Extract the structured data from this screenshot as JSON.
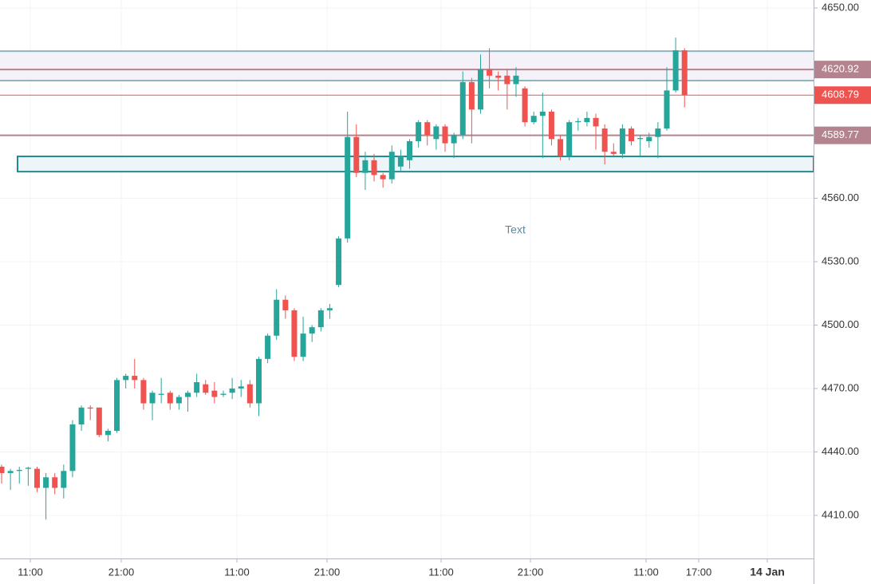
{
  "chart_data": {
    "type": "candlestick",
    "up_color": "#26a69a",
    "down_color": "#ef5350",
    "open": [
      4433,
      4430,
      4431,
      4432,
      4432,
      4423,
      4428,
      4423,
      4431,
      4453,
      4461,
      4461,
      4448,
      4450,
      4474,
      4476,
      4474,
      4463,
      4467,
      4468,
      4463,
      4466,
      4468,
      4472,
      4469,
      4467,
      4468,
      4470,
      4472,
      4463,
      4484,
      4495,
      4512,
      4507,
      4485,
      4496,
      4499,
      4507,
      4519,
      4541,
      4589,
      4572,
      4578,
      4571,
      4569,
      4575,
      4578,
      4587,
      4596,
      4588,
      4594,
      4586,
      4590,
      4615,
      4602,
      4621,
      4618,
      4618,
      4614,
      4612,
      4596,
      4599,
      4601,
      4588,
      4580,
      4596,
      4596,
      4598,
      4593,
      4582,
      4581,
      4593,
      4588,
      4587,
      4589,
      4593,
      4611,
      4630
    ],
    "high": [
      4434,
      4432,
      4433,
      4433,
      4433,
      4430,
      4430,
      4434,
      4455,
      4462,
      4462,
      4461,
      4451,
      4475,
      4477,
      4484,
      4475,
      4469,
      4475,
      4469,
      4467,
      4469,
      4477,
      4474,
      4473,
      4469,
      4475,
      4474,
      4474,
      4485,
      4496,
      4517,
      4514,
      4508,
      4504,
      4500,
      4508,
      4510,
      4542,
      4601,
      4595,
      4582,
      4581,
      4572,
      4585,
      4583,
      4588,
      4597,
      4597,
      4595,
      4595,
      4591,
      4620,
      4617,
      4628,
      4631,
      4620,
      4621,
      4622,
      4613,
      4601,
      4610,
      4602,
      4590,
      4597,
      4598,
      4601,
      4600,
      4595,
      4586,
      4595,
      4594,
      4590,
      4591,
      4596,
      4622,
      4636,
      4631
    ],
    "low": [
      4425,
      4422,
      4425,
      4424,
      4421,
      4408,
      4420,
      4418,
      4428,
      4450,
      4455,
      4447,
      4445,
      4449,
      4470,
      4470,
      4460,
      4455,
      4463,
      4460,
      4460,
      4459,
      4466,
      4467,
      4463,
      4466,
      4465,
      4466,
      4461,
      4457,
      4482,
      4493,
      4503,
      4483,
      4483,
      4492,
      4497,
      4503,
      4518,
      4539,
      4570,
      4564,
      4568,
      4565,
      4567,
      4573,
      4574,
      4584,
      4585,
      4583,
      4582,
      4579,
      4588,
      4586,
      4600,
      4612,
      4611,
      4602,
      4608,
      4594,
      4595,
      4579,
      4585,
      4578,
      4578,
      4592,
      4594,
      4583,
      4576,
      4580,
      4579,
      4585,
      4580,
      4584,
      4579,
      4592,
      4610,
      4603
    ],
    "close": [
      4430,
      4431,
      4431.5,
      4432.5,
      4423,
      4428,
      4423,
      4431,
      4453,
      4461,
      4460.5,
      4448,
      4450,
      4474,
      4476,
      4474,
      4463,
      4468,
      4467.5,
      4463,
      4466,
      4468,
      4473,
      4468,
      4466,
      4467.5,
      4470,
      4471,
      4463,
      4484,
      4495,
      4512,
      4507,
      4485,
      4496,
      4499,
      4507,
      4508,
      4541,
      4589,
      4572,
      4578,
      4571,
      4569,
      4582,
      4580,
      4587,
      4596,
      4590,
      4594,
      4586,
      4590,
      4615,
      4602,
      4621,
      4618,
      4617,
      4614,
      4618,
      4596,
      4599,
      4601,
      4588,
      4580,
      4596,
      4596.5,
      4598,
      4594,
      4582,
      4581,
      4593,
      4587,
      4588.5,
      4589,
      4593,
      4611,
      4630,
      4608.79
    ],
    "x_axis_labels": [
      "11:00",
      "21:00",
      "11:00",
      "21:00",
      "11:00",
      "21:00",
      "11:00",
      "17:00",
      "14 Jan"
    ],
    "ylim": [
      4389.6,
      4653.8
    ],
    "yticks": [
      {
        "value": 4410,
        "label": "4410.00"
      },
      {
        "value": 4440,
        "label": "4440.00"
      },
      {
        "value": 4470,
        "label": "4470.00"
      },
      {
        "value": 4500,
        "label": "4500.00"
      },
      {
        "value": 4530,
        "label": "4530.00"
      },
      {
        "value": 4560,
        "label": "4560.00"
      },
      {
        "value": 4590,
        "label": "4590.00"
      },
      {
        "value": 4620,
        "label": "4620.00"
      },
      {
        "value": 4650,
        "label": "4650.00"
      }
    ],
    "grid": true,
    "price_levels": [
      {
        "value": 4620.92,
        "color": "#b5838f"
      },
      {
        "value": 4608.79,
        "color": "#ef5350"
      },
      {
        "value": 4589.77,
        "color": "#b5838f"
      }
    ],
    "band": {
      "top": 4629.6,
      "bottom": 4615.7,
      "color": "#8fb3bf",
      "fill": "#f4f1f9"
    },
    "rectangle": {
      "top": 4579.8,
      "bottom": 4572.6,
      "color": "#1f8a93",
      "fill": "#eef5f8"
    },
    "annotation": {
      "text": "Text",
      "color": "#5b8ba0"
    }
  }
}
